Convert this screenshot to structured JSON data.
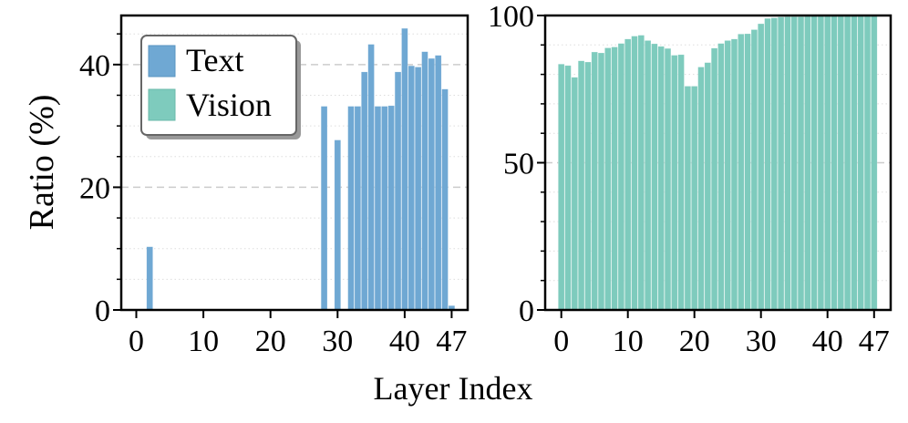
{
  "figure": {
    "ylabel": "Ratio (%)",
    "xlabel": "Layer Index"
  },
  "colors": {
    "text_series": "#6fa8d3",
    "vision_series": "#7ecbbd",
    "grid": "#cccccc"
  },
  "chart_data": [
    {
      "type": "bar",
      "title": "",
      "xlabel": "Layer Index",
      "ylabel": "Ratio (%)",
      "x": [
        0,
        1,
        2,
        3,
        4,
        5,
        6,
        7,
        8,
        9,
        10,
        11,
        12,
        13,
        14,
        15,
        16,
        17,
        18,
        19,
        20,
        21,
        22,
        23,
        24,
        25,
        26,
        27,
        28,
        29,
        30,
        31,
        32,
        33,
        34,
        35,
        36,
        37,
        38,
        39,
        40,
        41,
        42,
        43,
        44,
        45,
        46,
        47
      ],
      "series": [
        {
          "name": "Text",
          "color": "#6fa8d3",
          "values": [
            0,
            0,
            10.3,
            0,
            0,
            0,
            0,
            0,
            0,
            0,
            0,
            0,
            0,
            0,
            0,
            0,
            0,
            0,
            0,
            0,
            0,
            0,
            0,
            0,
            0,
            0,
            0,
            0,
            33.2,
            0,
            27.7,
            0,
            33.2,
            33.2,
            38.8,
            43.3,
            33.2,
            33.2,
            33.3,
            38.8,
            45.9,
            39.8,
            39.6,
            42.1,
            41.0,
            41.5,
            36.0,
            0.7
          ]
        }
      ],
      "ylim": [
        0,
        48
      ],
      "yticks": [
        0,
        20,
        40
      ],
      "xticks": [
        0,
        10,
        20,
        30,
        40,
        47
      ],
      "legend": {
        "position": "upper-left",
        "entries": [
          "Text",
          "Vision"
        ]
      },
      "grid": true
    },
    {
      "type": "bar",
      "title": "",
      "xlabel": "Layer Index",
      "ylabel": "",
      "x": [
        0,
        1,
        2,
        3,
        4,
        5,
        6,
        7,
        8,
        9,
        10,
        11,
        12,
        13,
        14,
        15,
        16,
        17,
        18,
        19,
        20,
        21,
        22,
        23,
        24,
        25,
        26,
        27,
        28,
        29,
        30,
        31,
        32,
        33,
        34,
        35,
        36,
        37,
        38,
        39,
        40,
        41,
        42,
        43,
        44,
        45,
        46,
        47
      ],
      "series": [
        {
          "name": "Vision",
          "color": "#7ecbbd",
          "values": [
            83.5,
            83.0,
            79.0,
            84.6,
            84.2,
            87.6,
            87.3,
            89.0,
            89.3,
            90.5,
            92.0,
            93.0,
            93.3,
            91.5,
            90.4,
            89.5,
            88.8,
            86.5,
            86.7,
            76.0,
            76.0,
            82.5,
            84.0,
            88.9,
            90.5,
            91.5,
            92.0,
            93.7,
            93.8,
            95.2,
            97.2,
            99.0,
            99.2,
            99.5,
            99.6,
            99.6,
            99.6,
            99.7,
            99.8,
            99.8,
            99.8,
            99.8,
            99.9,
            99.9,
            99.9,
            100,
            100,
            100
          ]
        }
      ],
      "ylim": [
        0,
        100
      ],
      "yticks": [
        0,
        50,
        100
      ],
      "xticks": [
        0,
        10,
        20,
        30,
        40,
        47
      ],
      "grid": true
    }
  ]
}
